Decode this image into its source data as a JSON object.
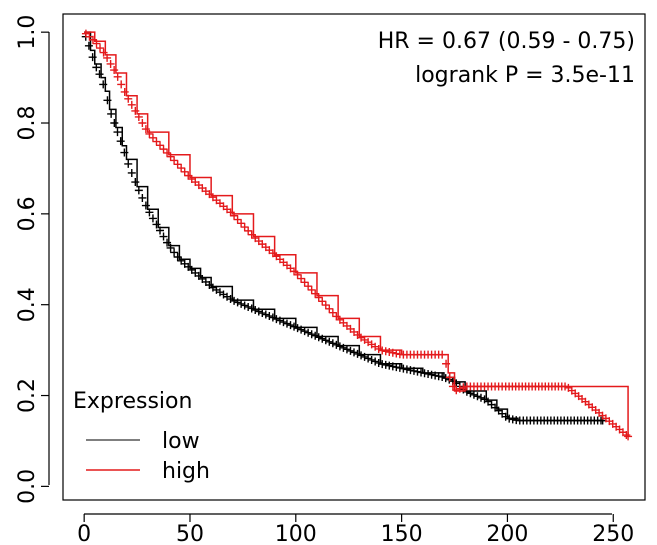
{
  "chart_data": {
    "type": "line",
    "title": "",
    "xlabel": "",
    "ylabel": "",
    "xlim": [
      -10,
      265
    ],
    "ylim": [
      -0.03,
      1.04
    ],
    "x_ticks": [
      "0",
      "50",
      "100",
      "150",
      "200",
      "250"
    ],
    "y_ticks": [
      "0.0",
      "0.2",
      "0.4",
      "0.6",
      "0.8",
      "1.0"
    ],
    "annotations": {
      "hr": "HR = 0.67 (0.59 - 0.75)",
      "logrank": "logrank P = 3.5e-11"
    },
    "legend": {
      "title": "Expression",
      "placement": "bottom-left",
      "entries": [
        {
          "label": "low",
          "color": "#000000"
        },
        {
          "label": "high",
          "color": "#e41a1c"
        }
      ]
    },
    "series": [
      {
        "name": "low",
        "color": "#000000",
        "x": [
          0,
          3,
          5,
          8,
          10,
          12,
          15,
          18,
          20,
          25,
          30,
          35,
          40,
          45,
          50,
          55,
          60,
          70,
          80,
          90,
          100,
          110,
          120,
          130,
          140,
          150,
          160,
          170,
          175,
          180,
          190,
          195,
          200,
          205,
          215,
          245
        ],
        "y": [
          1.0,
          0.96,
          0.93,
          0.9,
          0.87,
          0.83,
          0.79,
          0.75,
          0.72,
          0.66,
          0.61,
          0.57,
          0.53,
          0.5,
          0.48,
          0.46,
          0.44,
          0.41,
          0.39,
          0.37,
          0.35,
          0.33,
          0.31,
          0.29,
          0.27,
          0.26,
          0.25,
          0.24,
          0.23,
          0.21,
          0.19,
          0.17,
          0.15,
          0.145,
          0.145,
          0.145
        ]
      },
      {
        "name": "high",
        "color": "#e41a1c",
        "x": [
          0,
          5,
          10,
          15,
          20,
          25,
          30,
          40,
          50,
          60,
          70,
          80,
          90,
          100,
          110,
          120,
          130,
          140,
          150,
          160,
          170,
          172,
          175,
          180,
          190,
          200,
          228,
          257
        ],
        "y": [
          1.0,
          0.98,
          0.95,
          0.91,
          0.86,
          0.82,
          0.78,
          0.73,
          0.68,
          0.64,
          0.6,
          0.55,
          0.51,
          0.47,
          0.42,
          0.37,
          0.33,
          0.3,
          0.29,
          0.29,
          0.29,
          0.25,
          0.21,
          0.22,
          0.22,
          0.22,
          0.22,
          0.11
        ]
      }
    ]
  }
}
